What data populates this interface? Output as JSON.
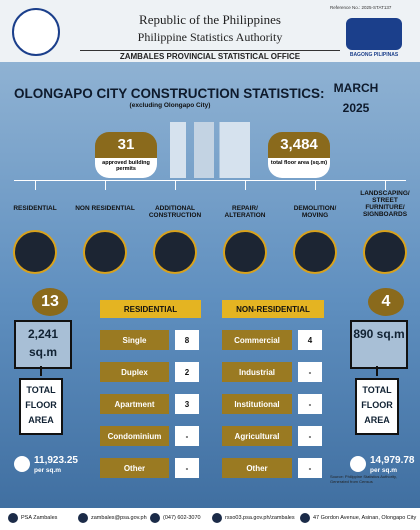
{
  "header": {
    "reference": "Reference No.: 2025-STAT137",
    "line1": "Republic of the Philippines",
    "line2": "Philippine Statistics Authority",
    "office": "ZAMBALES PROVINCIAL STATISTICAL OFFICE",
    "badge": "BAGONG PILIPINAS"
  },
  "title": "OLONGAPO CITY CONSTRUCTION STATISTICS:",
  "period": "MARCH 2025",
  "subtitle": "(excluding Olongapo City)",
  "summary": [
    {
      "value": "31",
      "label": "approved building permits"
    },
    {
      "value": "3,484",
      "label": "total floor area (sq.m)"
    }
  ],
  "categories": [
    "RESIDENTIAL",
    "NON RESIDENTIAL",
    "ADDITIONAL CONSTRUCTION",
    "REPAIR/ ALTERATION",
    "DEMOLITION/ MOVING",
    "LANDSCAPING/ STREET FURNITURE/ SIGNBOARDS"
  ],
  "residential": {
    "count": "13",
    "area": "2,241 sq.m",
    "area_label": "TOTAL FLOOR AREA",
    "cost": "11,923.25",
    "cost_unit": "per sq.m",
    "header": "RESIDENTIAL",
    "rows": [
      [
        "Single",
        "8"
      ],
      [
        "Duplex",
        "2"
      ],
      [
        "Apartment",
        "3"
      ],
      [
        "Condominium",
        "-"
      ],
      [
        "Other",
        "-"
      ]
    ]
  },
  "non_residential": {
    "count": "4",
    "area": "890 sq.m",
    "area_label": "TOTAL FLOOR AREA",
    "cost": "14,979.78",
    "cost_unit": "per sq.m",
    "header": "NON-RESIDENTIAL",
    "rows": [
      [
        "Commercial",
        "4"
      ],
      [
        "Industrial",
        "-"
      ],
      [
        "Institutional",
        "-"
      ],
      [
        "Agricultural",
        "-"
      ],
      [
        "Other",
        "-"
      ]
    ]
  },
  "source": "Source: Philippine Statistics Authority, Generated from Census",
  "footer": [
    "PSA Zambales",
    "zambales@psa.gov.ph",
    "(047) 602-3070",
    "rsso03.psa.gov.ph/zambales",
    "47 Gordon Avenue, Asinan, Olongapo City"
  ]
}
